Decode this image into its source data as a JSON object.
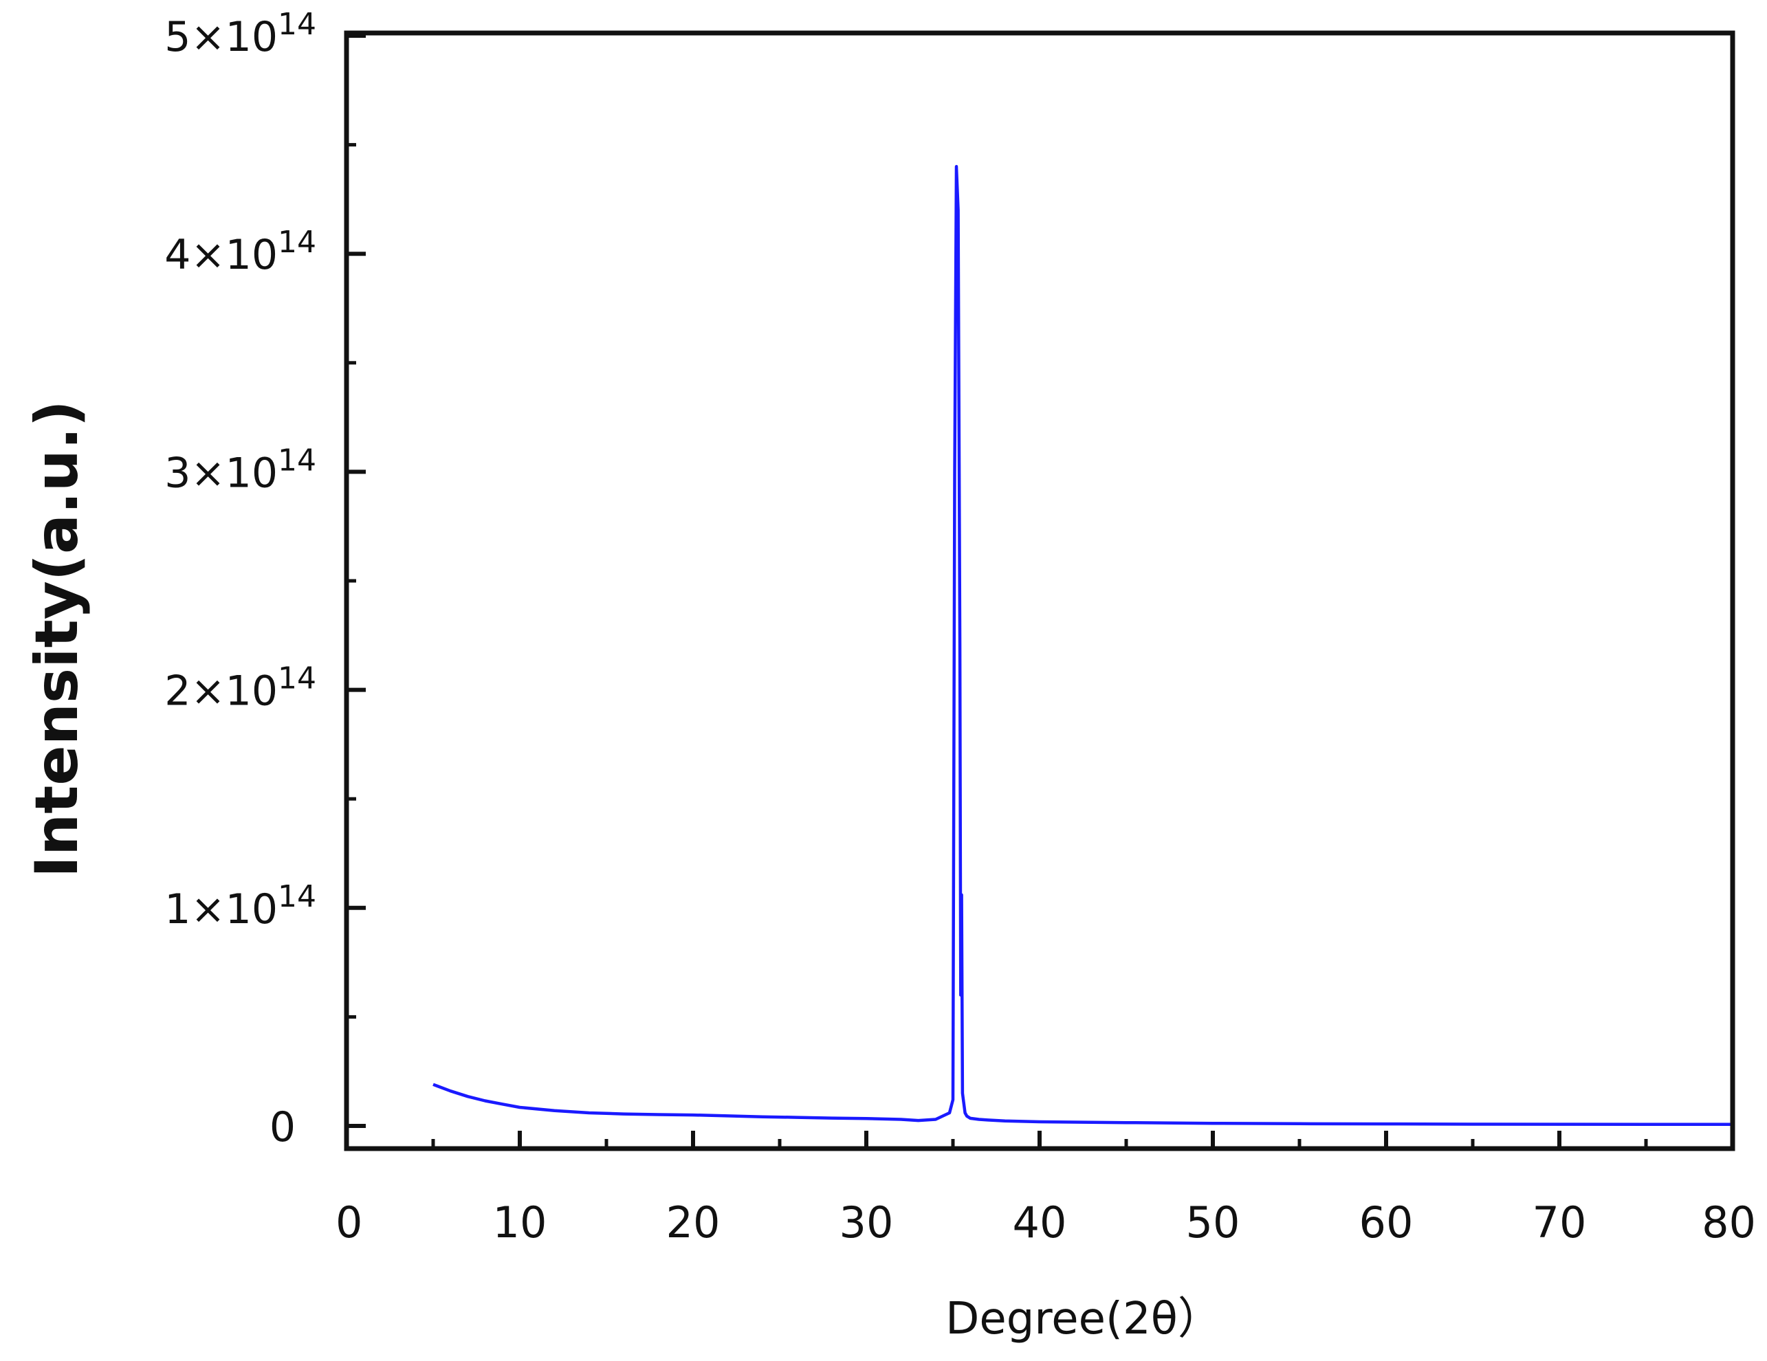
{
  "chart_data": {
    "type": "line",
    "title": "",
    "xlabel": "Degree(2θ）",
    "ylabel": "Intensity(a.u.)",
    "xlim": [
      0,
      80
    ],
    "ylim": [
      0,
      500000000000000.0
    ],
    "x_ticks": [
      {
        "value": 0,
        "label": "0"
      },
      {
        "value": 10,
        "label": "10"
      },
      {
        "value": 20,
        "label": "20"
      },
      {
        "value": 30,
        "label": "30"
      },
      {
        "value": 40,
        "label": "40"
      },
      {
        "value": 50,
        "label": "50"
      },
      {
        "value": 60,
        "label": "60"
      },
      {
        "value": 70,
        "label": "70"
      },
      {
        "value": 80,
        "label": "80"
      }
    ],
    "y_ticks": [
      {
        "value": 0,
        "label": "0",
        "exp": ""
      },
      {
        "value": 100000000000000.0,
        "label": "1×10",
        "exp": "14"
      },
      {
        "value": 200000000000000.0,
        "label": "2×10",
        "exp": "14"
      },
      {
        "value": 300000000000000.0,
        "label": "3×10",
        "exp": "14"
      },
      {
        "value": 400000000000000.0,
        "label": "4×10",
        "exp": "14"
      },
      {
        "value": 500000000000000.0,
        "label": "5×10",
        "exp": "14"
      }
    ],
    "grid": false,
    "legend": "none",
    "series": [
      {
        "color": "#1a1aff",
        "x": [
          5,
          6,
          7,
          8,
          9,
          10,
          12,
          14,
          16,
          18,
          20,
          22,
          24,
          26,
          28,
          30,
          32,
          33,
          34,
          34.8,
          35.0,
          35.1,
          35.2,
          35.3,
          35.4,
          35.45,
          35.5,
          35.55,
          35.6,
          35.7,
          35.8,
          36.0,
          36.5,
          37,
          38,
          40,
          45,
          50,
          55,
          60,
          65,
          70,
          75,
          80
        ],
        "y": [
          19000000000000.0,
          16000000000000.0,
          13500000000000.0,
          11500000000000.0,
          10000000000000.0,
          8500000000000.0,
          7000000000000.0,
          6000000000000.0,
          5500000000000.0,
          5200000000000.0,
          5000000000000.0,
          4600000000000.0,
          4200000000000.0,
          3900000000000.0,
          3600000000000.0,
          3400000000000.0,
          3000000000000.0,
          2500000000000.0,
          3000000000000.0,
          6000000000000.0,
          12000000000000.0,
          300000000000000.0,
          440000000000000.0,
          420000000000000.0,
          220000000000000.0,
          60000000000000.0,
          106000000000000.0,
          15000000000000.0,
          12000000000000.0,
          6000000000000.0,
          4500000000000.0,
          3500000000000.0,
          3000000000000.0,
          2700000000000.0,
          2300000000000.0,
          1900000000000.0,
          1500000000000.0,
          1200000000000.0,
          1000000000000.0,
          900000000000.0,
          800000000000.0,
          750000000000.0,
          700000000000.0,
          700000000000.0
        ]
      }
    ]
  }
}
